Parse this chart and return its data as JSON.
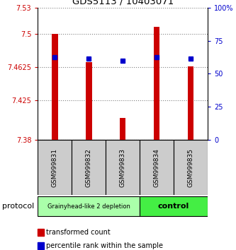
{
  "title": "GDS5113 / 10403071",
  "samples": [
    "GSM999831",
    "GSM999832",
    "GSM999833",
    "GSM999834",
    "GSM999835"
  ],
  "bar_values": [
    7.5,
    7.468,
    7.405,
    7.508,
    7.463
  ],
  "bar_bottom": 7.38,
  "percentile_values": [
    7.474,
    7.472,
    7.47,
    7.474,
    7.472
  ],
  "ylim_left": [
    7.38,
    7.53
  ],
  "ylim_right": [
    0,
    100
  ],
  "left_ticks": [
    7.38,
    7.425,
    7.4625,
    7.5,
    7.53
  ],
  "left_tick_labels": [
    "7.38",
    "7.425",
    "7.4625",
    "7.5",
    "7.53"
  ],
  "right_ticks": [
    0,
    25,
    50,
    75,
    100
  ],
  "right_tick_labels": [
    "0",
    "25",
    "50",
    "75",
    "100%"
  ],
  "bar_color": "#cc0000",
  "percentile_color": "#0000cc",
  "group1_indices": [
    0,
    1,
    2
  ],
  "group2_indices": [
    3,
    4
  ],
  "group1_label": "Grainyhead-like 2 depletion",
  "group2_label": "control",
  "group1_bg": "#aaffaa",
  "group2_bg": "#44ee44",
  "protocol_label": "protocol",
  "legend_items": [
    "transformed count",
    "percentile rank within the sample"
  ],
  "legend_colors": [
    "#cc0000",
    "#0000cc"
  ],
  "background_color": "#ffffff",
  "plot_bg": "#ffffff",
  "tick_label_area_bg": "#cccccc"
}
